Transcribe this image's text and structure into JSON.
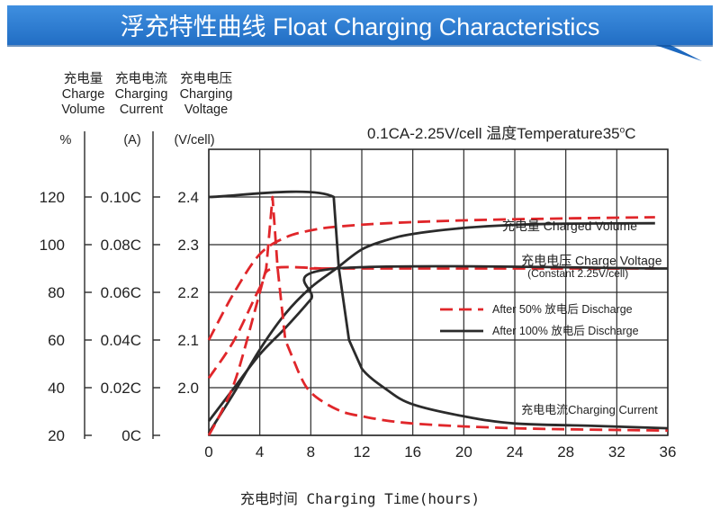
{
  "title": "浮充特性曲线 Float Charging Characteristics",
  "colors": {
    "banner": "#1e6fc6",
    "banner_dark": "#0f4d94",
    "after50": "#e0262a",
    "after100": "#2b2b2b",
    "grid": "#2b2b2b"
  },
  "chart_data": {
    "type": "line",
    "condition": "0.1CA-2.25V/cell 温度Temperature35°C",
    "condition_parts": {
      "main": "0.1CA-2.25V/cell  温度Temperature35",
      "sup": "o",
      "tail": "C"
    },
    "xlabel": "充电时间 Charging Time(hours)",
    "xlim": [
      0,
      36
    ],
    "x_ticks": [
      "0",
      "4",
      "8",
      "12",
      "16",
      "20",
      "24",
      "28",
      "32",
      "36"
    ],
    "grid": true,
    "axes": [
      {
        "name": "充电量 Charge Volume",
        "lines": [
          "充电量",
          "Charge",
          "Volume"
        ],
        "unit": "%",
        "range": [
          20,
          120
        ],
        "ticks": [
          "120",
          "100",
          "80",
          "60",
          "40",
          "20"
        ]
      },
      {
        "name": "充电电流 Charging Current",
        "lines": [
          "充电电流",
          "Charging",
          "Current"
        ],
        "unit": "(A)",
        "range": [
          0,
          0.1
        ],
        "ticks": [
          "0.10C",
          "0.08C",
          "0.06C",
          "0.04C",
          "0.02C",
          "0C"
        ]
      },
      {
        "name": "充电电压 Charging Voltage",
        "lines": [
          "充电电压",
          "Charging",
          "Voltage"
        ],
        "unit": "(V/cell)",
        "range": [
          1.9,
          2.4
        ],
        "ticks": [
          "2.4",
          "2.3",
          "2.2",
          "2.1",
          "2.0",
          ""
        ]
      }
    ],
    "legend": {
      "placement": "right-middle",
      "entries": [
        {
          "label": "After 50% 放电后 Discharge",
          "style": "dashed",
          "color": "#e0262a"
        },
        {
          "label": "After 100% 放电后 Discharge",
          "style": "solid",
          "color": "#2b2b2b"
        }
      ]
    },
    "annotations": [
      {
        "text": "充电量 Charged Volume",
        "x": 23,
        "y_voltage": 2.33
      },
      {
        "text": "充电电压 Charge Voltage",
        "x": 24.5,
        "y_voltage": 2.258
      },
      {
        "text": "(Constant 2.25V/cell)",
        "x": 25,
        "y_voltage": 2.232
      },
      {
        "text": "充电电流Charging Current",
        "x": 24.5,
        "y_voltage": 1.945
      }
    ],
    "series": [
      {
        "name": "Charge Volume",
        "group": "After 50% 放电后 Discharge",
        "axis": 0,
        "style": "dashed",
        "points": [
          [
            0,
            60
          ],
          [
            2,
            80
          ],
          [
            4,
            96
          ],
          [
            6,
            103
          ],
          [
            8,
            106
          ],
          [
            10,
            107.5
          ],
          [
            14,
            109
          ],
          [
            20,
            110.2
          ],
          [
            28,
            111
          ],
          [
            35,
            111.5
          ]
        ]
      },
      {
        "name": "Charge Volume",
        "group": "After 100% 放电后 Discharge",
        "axis": 0,
        "style": "solid",
        "points": [
          [
            0,
            21
          ],
          [
            2,
            38
          ],
          [
            4,
            56
          ],
          [
            6,
            71
          ],
          [
            8,
            82
          ],
          [
            10,
            90
          ],
          [
            12,
            98
          ],
          [
            14,
            102
          ],
          [
            16,
            104.5
          ],
          [
            20,
            107
          ],
          [
            24,
            108.3
          ],
          [
            28,
            108.8
          ],
          [
            35,
            109
          ]
        ]
      },
      {
        "name": "Charging Voltage",
        "group": "After 50% 放电后 Discharge",
        "axis": 2,
        "style": "dashed",
        "points": [
          [
            0,
            2.02
          ],
          [
            2,
            2.1
          ],
          [
            4,
            2.21
          ],
          [
            5,
            2.25
          ],
          [
            9,
            2.25
          ],
          [
            10,
            2.25
          ],
          [
            35,
            2.25
          ]
        ]
      },
      {
        "name": "Charging Voltage",
        "group": "After 100% 放电后 Discharge",
        "axis": 2,
        "style": "solid",
        "points": [
          [
            0,
            1.93
          ],
          [
            2,
            2.0
          ],
          [
            4,
            2.07
          ],
          [
            6,
            2.125
          ],
          [
            8,
            2.185
          ],
          [
            10,
            2.25
          ],
          [
            36,
            2.25
          ]
        ]
      },
      {
        "name": "Charging Current",
        "group": "After 50% 放电后 Discharge",
        "axis": 1,
        "style": "dashed",
        "points": [
          [
            0,
            0.0
          ],
          [
            1,
            0.01
          ],
          [
            2,
            0.022
          ],
          [
            3,
            0.04
          ],
          [
            4.5,
            0.07
          ],
          [
            5,
            0.1
          ],
          [
            5.4,
            0.07
          ],
          [
            6,
            0.04
          ],
          [
            7,
            0.027
          ],
          [
            8,
            0.018
          ],
          [
            10,
            0.011
          ],
          [
            12,
            0.008
          ],
          [
            16,
            0.005
          ],
          [
            24,
            0.003
          ],
          [
            36,
            0.002
          ]
        ]
      },
      {
        "name": "Charging Current",
        "group": "After 100% 放电后 Discharge",
        "axis": 1,
        "style": "solid",
        "points": [
          [
            0,
            0.1
          ],
          [
            9.8,
            0.1
          ],
          [
            10.2,
            0.07
          ],
          [
            11,
            0.04
          ],
          [
            12,
            0.028
          ],
          [
            14,
            0.019
          ],
          [
            16,
            0.013
          ],
          [
            20,
            0.008
          ],
          [
            24,
            0.005
          ],
          [
            30,
            0.004
          ],
          [
            36,
            0.003
          ]
        ]
      }
    ]
  }
}
